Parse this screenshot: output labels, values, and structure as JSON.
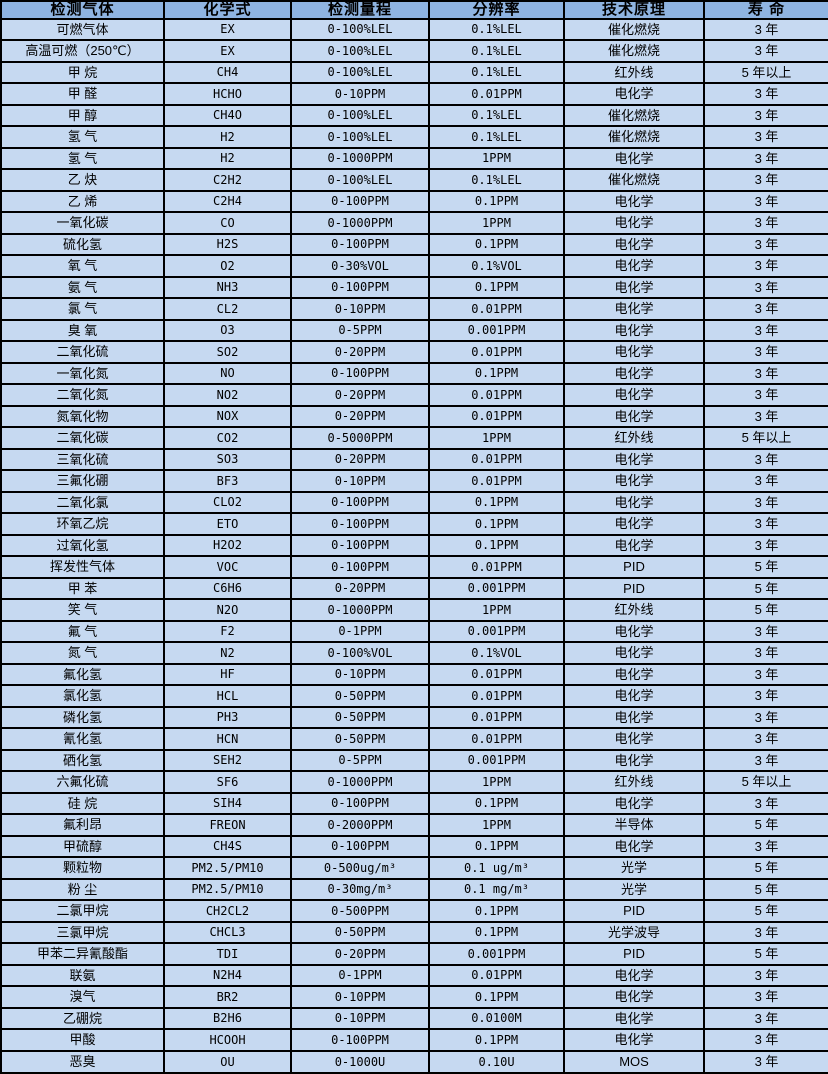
{
  "colors": {
    "header_bg": "#8fb4e1",
    "row_bg": "#c6d9f1",
    "border": "#000000",
    "text": "#000000"
  },
  "table": {
    "columns": [
      {
        "key": "gas",
        "label": "检测气体"
      },
      {
        "key": "formula",
        "label": "化学式"
      },
      {
        "key": "range",
        "label": "检测量程"
      },
      {
        "key": "resolution",
        "label": "分辨率"
      },
      {
        "key": "principle",
        "label": "技术原理"
      },
      {
        "key": "lifespan",
        "label": "寿  命"
      }
    ],
    "rows": [
      [
        "可燃气体",
        "EX",
        "0-100%LEL",
        "0.1%LEL",
        "催化燃烧",
        "3 年"
      ],
      [
        "高温可燃（250℃）",
        "EX",
        "0-100%LEL",
        "0.1%LEL",
        "催化燃烧",
        "3 年"
      ],
      [
        "甲 烷",
        "CH4",
        "0-100%LEL",
        "0.1%LEL",
        "红外线",
        "5 年以上"
      ],
      [
        "甲 醛",
        "HCHO",
        "0-10PPM",
        "0.01PPM",
        "电化学",
        "3 年"
      ],
      [
        "甲 醇",
        "CH4O",
        "0-100%LEL",
        "0.1%LEL",
        "催化燃烧",
        "3 年"
      ],
      [
        "氢 气",
        "H2",
        "0-100%LEL",
        "0.1%LEL",
        "催化燃烧",
        "3 年"
      ],
      [
        "氢 气",
        "H2",
        "0-1000PPM",
        "1PPM",
        "电化学",
        "3 年"
      ],
      [
        "乙 炔",
        "C2H2",
        "0-100%LEL",
        "0.1%LEL",
        "催化燃烧",
        "3 年"
      ],
      [
        "乙 烯",
        "C2H4",
        "0-100PPM",
        "0.1PPM",
        "电化学",
        "3 年"
      ],
      [
        "一氧化碳",
        "CO",
        "0-1000PPM",
        "1PPM",
        "电化学",
        "3 年"
      ],
      [
        "硫化氢",
        "H2S",
        "0-100PPM",
        "0.1PPM",
        "电化学",
        "3 年"
      ],
      [
        "氧 气",
        "O2",
        "0-30%VOL",
        "0.1%VOL",
        "电化学",
        "3 年"
      ],
      [
        "氨 气",
        "NH3",
        "0-100PPM",
        "0.1PPM",
        "电化学",
        "3 年"
      ],
      [
        "氯 气",
        "CL2",
        "0-10PPM",
        "0.01PPM",
        "电化学",
        "3 年"
      ],
      [
        "臭 氧",
        "O3",
        "0-5PPM",
        "0.001PPM",
        "电化学",
        "3 年"
      ],
      [
        "二氧化硫",
        "SO2",
        "0-20PPM",
        "0.01PPM",
        "电化学",
        "3 年"
      ],
      [
        "一氧化氮",
        "NO",
        "0-100PPM",
        "0.1PPM",
        "电化学",
        "3 年"
      ],
      [
        "二氧化氮",
        "NO2",
        "0-20PPM",
        "0.01PPM",
        "电化学",
        "3 年"
      ],
      [
        "氮氧化物",
        "NOX",
        "0-20PPM",
        "0.01PPM",
        "电化学",
        "3 年"
      ],
      [
        "二氧化碳",
        "CO2",
        "0-5000PPM",
        "1PPM",
        "红外线",
        "5 年以上"
      ],
      [
        "三氧化硫",
        "SO3",
        "0-20PPM",
        "0.01PPM",
        "电化学",
        "3 年"
      ],
      [
        "三氟化硼",
        "BF3",
        "0-10PPM",
        "0.01PPM",
        "电化学",
        "3 年"
      ],
      [
        "二氧化氯",
        "CLO2",
        "0-100PPM",
        "0.1PPM",
        "电化学",
        "3 年"
      ],
      [
        "环氧乙烷",
        "ETO",
        "0-100PPM",
        "0.1PPM",
        "电化学",
        "3 年"
      ],
      [
        "过氧化氢",
        "H2O2",
        "0-100PPM",
        "0.1PPM",
        "电化学",
        "3 年"
      ],
      [
        "挥发性气体",
        "VOC",
        "0-100PPM",
        "0.01PPM",
        "PID",
        "5 年"
      ],
      [
        "甲 苯",
        "C6H6",
        "0-20PPM",
        "0.001PPM",
        "PID",
        "5 年"
      ],
      [
        "笑 气",
        "N2O",
        "0-1000PPM",
        "1PPM",
        "红外线",
        "5 年"
      ],
      [
        "氟 气",
        "F2",
        "0-1PPM",
        "0.001PPM",
        "电化学",
        "3 年"
      ],
      [
        "氮 气",
        "N2",
        "0-100%VOL",
        "0.1%VOL",
        "电化学",
        "3 年"
      ],
      [
        "氟化氢",
        "HF",
        "0-10PPM",
        "0.01PPM",
        "电化学",
        "3 年"
      ],
      [
        "氯化氢",
        "HCL",
        "0-50PPM",
        "0.01PPM",
        "电化学",
        "3 年"
      ],
      [
        "磷化氢",
        "PH3",
        "0-50PPM",
        "0.01PPM",
        "电化学",
        "3 年"
      ],
      [
        "氰化氢",
        "HCN",
        "0-50PPM",
        "0.01PPM",
        "电化学",
        "3 年"
      ],
      [
        "硒化氢",
        "SEH2",
        "0-5PPM",
        "0.001PPM",
        "电化学",
        "3 年"
      ],
      [
        "六氟化硫",
        "SF6",
        "0-1000PPM",
        "1PPM",
        "红外线",
        "5 年以上"
      ],
      [
        "硅 烷",
        "SIH4",
        "0-100PPM",
        "0.1PPM",
        "电化学",
        "3 年"
      ],
      [
        "氟利昂",
        "FREON",
        "0-2000PPM",
        "1PPM",
        "半导体",
        "5 年"
      ],
      [
        "甲硫醇",
        "CH4S",
        "0-100PPM",
        "0.1PPM",
        "电化学",
        "3 年"
      ],
      [
        "颗粒物",
        "PM2.5/PM10",
        "0-500ug/m³",
        "0.1 ug/m³",
        "光学",
        "5 年"
      ],
      [
        "粉 尘",
        "PM2.5/PM10",
        "0-30mg/m³",
        "0.1 mg/m³",
        "光学",
        "5 年"
      ],
      [
        "二氯甲烷",
        "CH2CL2",
        "0-500PPM",
        "0.1PPM",
        "PID",
        "5 年"
      ],
      [
        "三氯甲烷",
        "CHCL3",
        "0-50PPM",
        "0.1PPM",
        "光学波导",
        "3 年"
      ],
      [
        "甲苯二异氰酸酯",
        "TDI",
        "0-20PPM",
        "0.001PPM",
        "PID",
        "5 年"
      ],
      [
        "联氨",
        "N2H4",
        "0-1PPM",
        "0.01PPM",
        "电化学",
        "3 年"
      ],
      [
        "溴气",
        "BR2",
        "0-10PPM",
        "0.1PPM",
        "电化学",
        "3 年"
      ],
      [
        "乙硼烷",
        "B2H6",
        "0-10PPM",
        "0.0100M",
        "电化学",
        "3 年"
      ],
      [
        "甲酸",
        "HCOOH",
        "0-100PPM",
        "0.1PPM",
        "电化学",
        "3 年"
      ],
      [
        "恶臭",
        "OU",
        "0-1000U",
        "0.10U",
        "MOS",
        "3 年"
      ]
    ]
  }
}
